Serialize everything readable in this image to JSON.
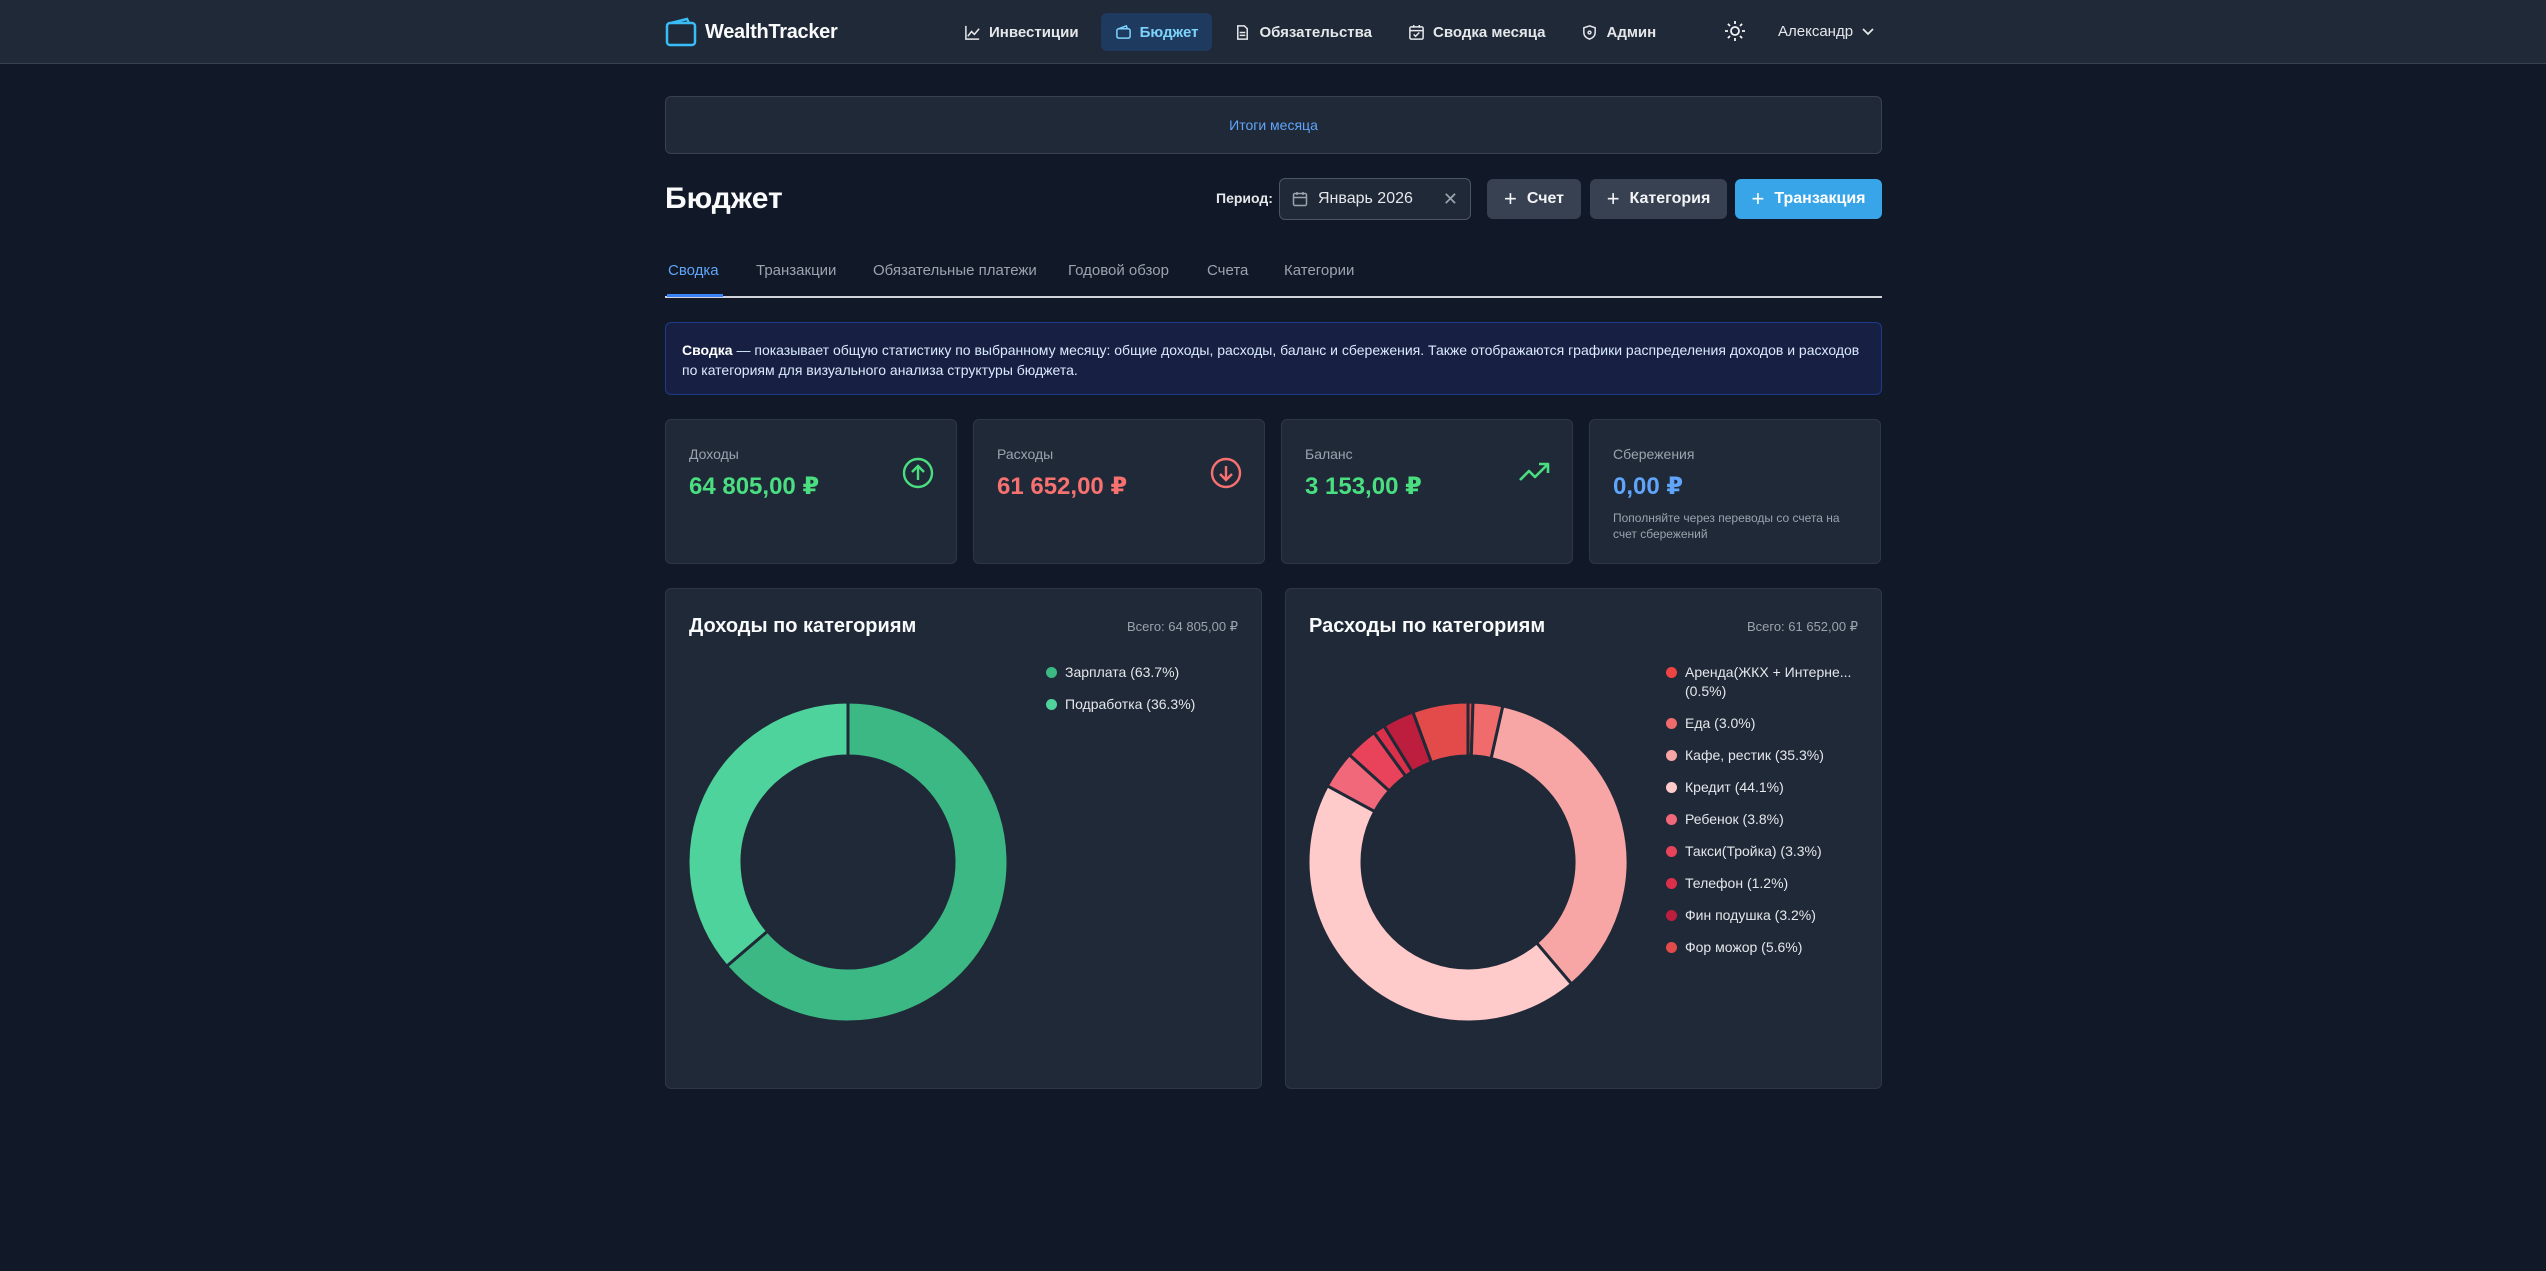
{
  "app": {
    "name": "WealthTracker",
    "accent": "#38a5e8"
  },
  "nav": {
    "items": [
      {
        "label": "Инвестиции",
        "icon": "trend-chart-icon",
        "active": false
      },
      {
        "label": "Бюджет",
        "icon": "wallet-icon",
        "active": true
      },
      {
        "label": "Обязательства",
        "icon": "document-icon",
        "active": false
      },
      {
        "label": "Сводка месяца",
        "icon": "calendar-check-icon",
        "active": false
      },
      {
        "label": "Админ",
        "icon": "shield-icon",
        "active": false
      }
    ],
    "theme_icon": "sun-icon",
    "user_name": "Александр"
  },
  "summary_strip": {
    "label": "Итоги месяца"
  },
  "page": {
    "title": "Бюджет",
    "period_label": "Период:",
    "period_value": "Январь 2026",
    "buttons": {
      "account": "Счет",
      "category": "Категория",
      "transaction": "Транзакция"
    }
  },
  "tabs": [
    "Сводка",
    "Транзакции",
    "Обязательные платежи",
    "Годовой обзор",
    "Счета",
    "Категории"
  ],
  "info": {
    "bold": "Сводка",
    "text": " — показывает общую статистику по выбранному месяцу: общие доходы, расходы, баланс и сбережения. Также отображаются графики распределения доходов и расходов по категориям для визуального анализа структуры бюджета."
  },
  "stats": {
    "income": {
      "label": "Доходы",
      "value": "64 805,00 ₽",
      "color": "#4ade80"
    },
    "expense": {
      "label": "Расходы",
      "value": "61 652,00 ₽",
      "color": "#f87171"
    },
    "balance": {
      "label": "Баланс",
      "value": "3 153,00 ₽",
      "color": "#4ade80"
    },
    "savings": {
      "label": "Сбережения",
      "value": "0,00 ₽",
      "color": "#60a5fa",
      "note": "Пополняйте через переводы со счета на счет сбережений"
    }
  },
  "chart_data": [
    {
      "type": "pie",
      "title": "Доходы по категориям",
      "total_label": "Всего: 64 805,00 ₽",
      "slices": [
        {
          "label": "Зарплата (63.7%)",
          "value": 63.7,
          "color": "#3cb884"
        },
        {
          "label": "Подработка (36.3%)",
          "value": 36.3,
          "color": "#4fd39c"
        }
      ]
    },
    {
      "type": "pie",
      "title": "Расходы по категориям",
      "total_label": "Всего: 61 652,00 ₽",
      "slices": [
        {
          "label": "Аренда(ЖКХ + Интерне... (0.5%)",
          "value": 0.5,
          "color": "#ef4444"
        },
        {
          "label": "Еда (3.0%)",
          "value": 3.0,
          "color": "#f06b6b"
        },
        {
          "label": "Кафе, рестик (35.3%)",
          "value": 35.3,
          "color": "#f8a5a5"
        },
        {
          "label": "Кредит (44.1%)",
          "value": 44.1,
          "color": "#fecaca"
        },
        {
          "label": "Ребенок (3.8%)",
          "value": 3.8,
          "color": "#f0687a"
        },
        {
          "label": "Такси(Тройка) (3.3%)",
          "value": 3.3,
          "color": "#e8435a"
        },
        {
          "label": "Телефон (1.2%)",
          "value": 1.2,
          "color": "#dc2f4a"
        },
        {
          "label": "Фин подушка (3.2%)",
          "value": 3.2,
          "color": "#be1e3d"
        },
        {
          "label": "Фор можор (5.6%)",
          "value": 5.6,
          "color": "#e34b4b"
        }
      ]
    }
  ]
}
